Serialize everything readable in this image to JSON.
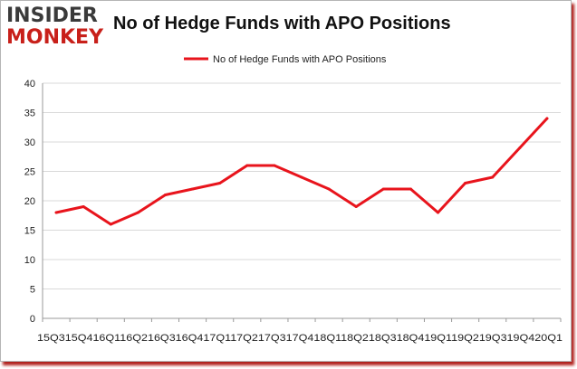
{
  "logo": {
    "line1": "INSIDER",
    "line2": "MONKEY"
  },
  "chart_data": {
    "type": "line",
    "title": "No of Hedge Funds with APO Positions",
    "categories": [
      "2015Q3",
      "2015Q4",
      "2016Q1",
      "2016Q2",
      "2016Q3",
      "2016Q4",
      "2017Q1",
      "2017Q2",
      "2017Q3",
      "2017Q4",
      "2018Q1",
      "2018Q2",
      "2018Q3",
      "2018Q4",
      "2019Q1",
      "2019Q2",
      "2019Q3",
      "2019Q4",
      "2020Q1"
    ],
    "x_axis_text": "15Q315Q416Q116Q216Q316Q417Q117Q217Q317Q418Q118Q218Q318Q419Q119Q219Q319Q420Q1",
    "series": [
      {
        "name": "No of Hedge Funds with APO Positions",
        "values": [
          18,
          19,
          16,
          18,
          21,
          22,
          23,
          26,
          26,
          24,
          22,
          19,
          22,
          22,
          18,
          23,
          24,
          29,
          34
        ]
      }
    ],
    "ylim": [
      0,
      40
    ],
    "yticks": [
      0,
      5,
      10,
      15,
      20,
      25,
      30,
      35,
      40
    ],
    "xlabel": "",
    "ylabel": "",
    "grid": "horizontal",
    "legend": "top-center",
    "colors": {
      "line": "#e8141c",
      "grid": "#d9d9d9",
      "axis": "#9a9a9a"
    }
  }
}
